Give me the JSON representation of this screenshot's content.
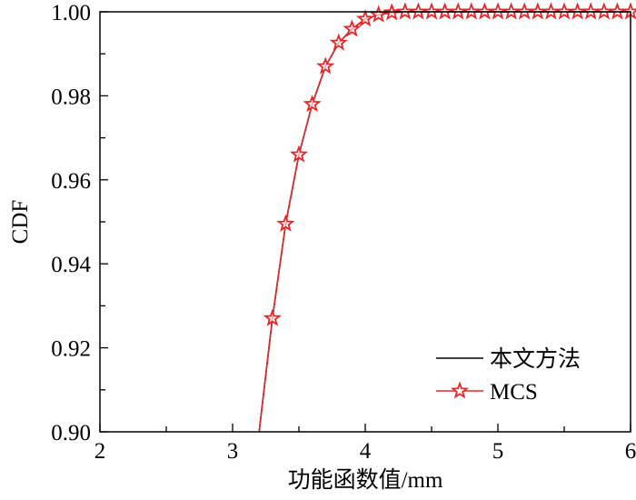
{
  "chart_data": {
    "type": "line",
    "title": "",
    "xlabel": "功能函数值/mm",
    "ylabel": "CDF",
    "xlim": [
      2,
      6
    ],
    "ylim": [
      0.9,
      1.0
    ],
    "xticks": [
      "2",
      "3",
      "4",
      "5",
      "6"
    ],
    "yticks": [
      "0.90",
      "0.92",
      "0.94",
      "0.96",
      "0.98",
      "1.00"
    ],
    "xtick_values": [
      2,
      3,
      4,
      5,
      6
    ],
    "ytick_values": [
      0.9,
      0.92,
      0.94,
      0.96,
      0.98,
      1.0
    ],
    "legend_position": "bottom-right",
    "series": [
      {
        "name": "本文方法",
        "color": "#000000",
        "marker": "none",
        "x": [
          3.2,
          3.3,
          3.4,
          3.5,
          3.6,
          3.7,
          3.8,
          3.9,
          4.0,
          4.1,
          4.2,
          4.3,
          4.5,
          5.0,
          5.5,
          6.0
        ],
        "y": [
          0.9,
          0.927,
          0.9495,
          0.966,
          0.978,
          0.987,
          0.9926,
          0.9959,
          0.9983,
          0.9993,
          0.9998,
          1.0,
          1.0,
          1.0,
          1.0,
          1.0
        ]
      },
      {
        "name": "MCS",
        "color": "#e8262a",
        "marker": "star",
        "x": [
          3.2,
          3.3,
          3.4,
          3.5,
          3.6,
          3.7,
          3.8,
          3.9,
          4.0,
          4.1,
          4.2,
          4.3,
          4.4,
          4.5,
          4.6,
          4.7,
          4.8,
          4.9,
          5.0,
          5.1,
          5.2,
          5.3,
          5.4,
          5.5,
          5.6,
          5.7,
          5.8,
          5.9,
          6.0
        ],
        "y": [
          0.9,
          0.927,
          0.9495,
          0.966,
          0.978,
          0.987,
          0.9926,
          0.9959,
          0.9983,
          0.9993,
          0.9998,
          1.0,
          1.0,
          1.0,
          1.0,
          1.0,
          1.0,
          1.0,
          1.0,
          1.0,
          1.0,
          1.0,
          1.0,
          1.0,
          1.0,
          1.0,
          1.0,
          1.0,
          1.0
        ],
        "marker_from_x": 3.3
      }
    ]
  }
}
